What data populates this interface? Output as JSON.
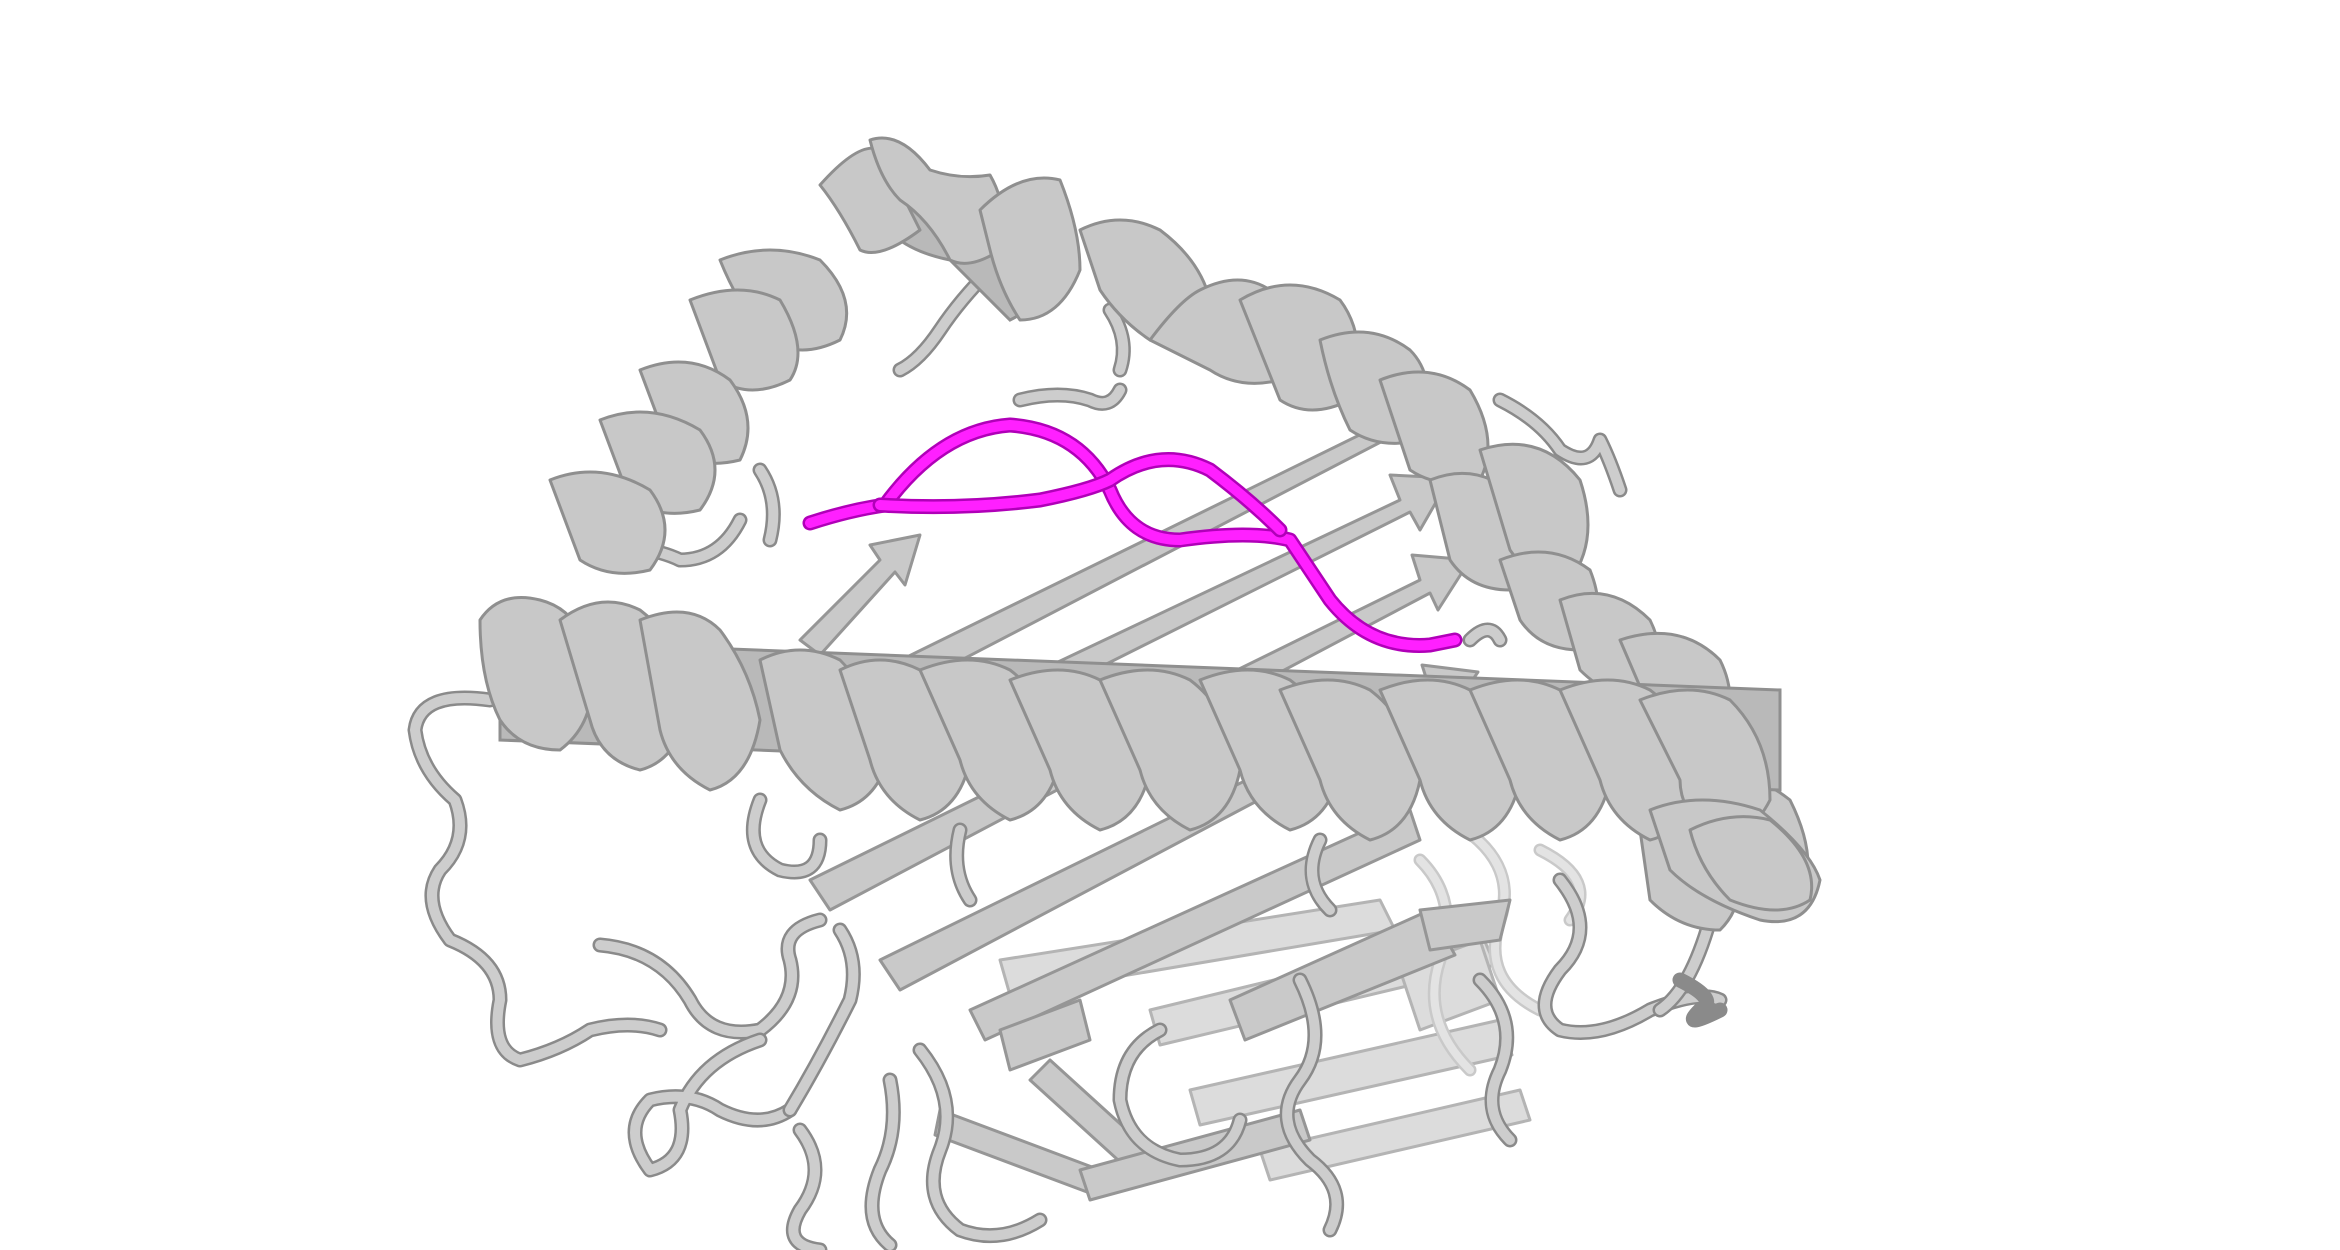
{
  "scene": {
    "subject": "protein-cartoon",
    "colors": {
      "background": "#ffffff",
      "protein": "#c8c8c8",
      "protein_outline": "#8f8f8f",
      "peptide": "#ff20ff"
    }
  }
}
